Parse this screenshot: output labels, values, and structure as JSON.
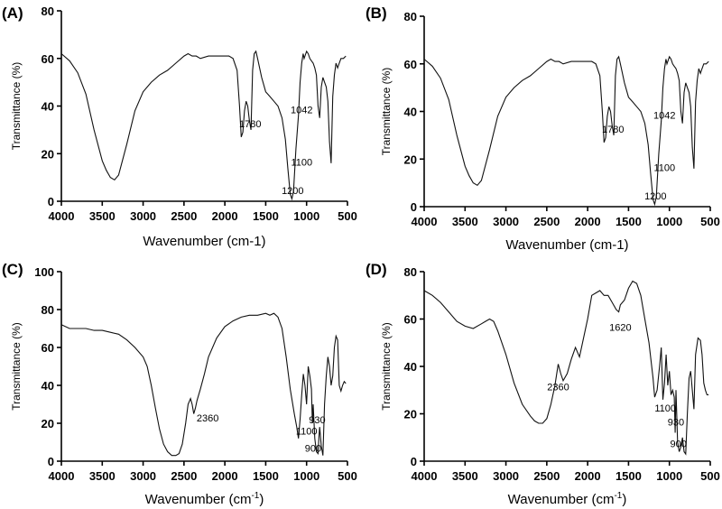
{
  "chart_data": [
    {
      "type": "line",
      "panel": "(A)",
      "xlabel": "Wavenumber (cm-1)",
      "ylabel": "Transmittance (%)",
      "xlim": [
        4000,
        500
      ],
      "ylim": [
        0,
        80
      ],
      "x_ticks": [
        "4000",
        "3500",
        "3000",
        "2500",
        "2000",
        "1500",
        "1000",
        "500"
      ],
      "y_ticks": [
        "0",
        "20",
        "40",
        "60",
        "80"
      ],
      "annotations": [
        {
          "text": "1780",
          "x": 1690,
          "y": 31
        },
        {
          "text": "1042",
          "x": 1060,
          "y": 37
        },
        {
          "text": "1100",
          "x": 1060,
          "y": 15
        },
        {
          "text": "1200",
          "x": 1170,
          "y": 3
        }
      ],
      "series": [
        {
          "x": [
            4000,
            3900,
            3800,
            3700,
            3600,
            3500,
            3450,
            3400,
            3350,
            3300,
            3200,
            3100,
            3000,
            2900,
            2800,
            2700,
            2600,
            2500,
            2450,
            2400,
            2350,
            2300,
            2200,
            2100,
            2000,
            1950,
            1900,
            1850,
            1820,
            1800,
            1780,
            1760,
            1740,
            1720,
            1700,
            1680,
            1660,
            1640,
            1620,
            1600,
            1550,
            1500,
            1450,
            1400,
            1350,
            1300,
            1260,
            1230,
            1200,
            1180,
            1160,
            1130,
            1100,
            1080,
            1060,
            1042,
            1030,
            1000,
            980,
            960,
            940,
            920,
            900,
            880,
            860,
            840,
            820,
            800,
            780,
            760,
            740,
            720,
            700,
            680,
            660,
            640,
            620,
            600,
            580,
            550,
            520
          ],
          "y": [
            62,
            59,
            54,
            45,
            30,
            17,
            13,
            10,
            9,
            11,
            24,
            38,
            46,
            50,
            53,
            55,
            58,
            61,
            62,
            61,
            61,
            60,
            61,
            61,
            61,
            61,
            60,
            55,
            40,
            27,
            29,
            38,
            42,
            40,
            34,
            30,
            55,
            62,
            63,
            60,
            52,
            46,
            44,
            42,
            40,
            35,
            26,
            14,
            3,
            1,
            4,
            22,
            36,
            50,
            58,
            62,
            60,
            63,
            62,
            60,
            59,
            58,
            56,
            53,
            40,
            35,
            48,
            52,
            50,
            48,
            42,
            25,
            16,
            44,
            53,
            58,
            56,
            58,
            60,
            60,
            61
          ]
        }
      ]
    },
    {
      "type": "line",
      "panel": "(B)",
      "xlabel": "Wavenumber (cm-1)",
      "ylabel": "Transmittance (%)",
      "xlim": [
        4000,
        500
      ],
      "ylim": [
        0,
        80
      ],
      "x_ticks": [
        "4000",
        "3500",
        "3000",
        "2500",
        "2000",
        "1500",
        "1000",
        "500"
      ],
      "y_ticks": [
        "0",
        "20",
        "40",
        "60",
        "80"
      ],
      "annotations": [
        {
          "text": "1780",
          "x": 1690,
          "y": 31
        },
        {
          "text": "1042",
          "x": 1060,
          "y": 37
        },
        {
          "text": "1100",
          "x": 1060,
          "y": 15
        },
        {
          "text": "1200",
          "x": 1170,
          "y": 3
        }
      ],
      "series": [
        {
          "x": [
            4000,
            3900,
            3800,
            3700,
            3600,
            3500,
            3450,
            3400,
            3350,
            3300,
            3200,
            3100,
            3000,
            2900,
            2800,
            2700,
            2600,
            2500,
            2450,
            2400,
            2350,
            2300,
            2200,
            2100,
            2000,
            1950,
            1900,
            1850,
            1820,
            1800,
            1780,
            1760,
            1740,
            1720,
            1700,
            1680,
            1660,
            1640,
            1620,
            1600,
            1550,
            1500,
            1450,
            1400,
            1350,
            1300,
            1260,
            1230,
            1200,
            1180,
            1160,
            1130,
            1100,
            1080,
            1060,
            1042,
            1030,
            1000,
            980,
            960,
            940,
            920,
            900,
            880,
            860,
            840,
            820,
            800,
            780,
            760,
            740,
            720,
            700,
            680,
            660,
            640,
            620,
            600,
            580,
            550,
            520
          ],
          "y": [
            62,
            59,
            54,
            45,
            30,
            17,
            13,
            10,
            9,
            11,
            24,
            38,
            46,
            50,
            53,
            55,
            58,
            61,
            62,
            61,
            61,
            60,
            61,
            61,
            61,
            61,
            60,
            55,
            40,
            27,
            29,
            38,
            42,
            40,
            34,
            30,
            55,
            62,
            63,
            60,
            52,
            46,
            44,
            42,
            40,
            35,
            26,
            14,
            3,
            1,
            4,
            22,
            36,
            50,
            58,
            62,
            60,
            63,
            62,
            60,
            59,
            58,
            56,
            53,
            40,
            35,
            48,
            52,
            50,
            48,
            42,
            25,
            16,
            44,
            53,
            58,
            56,
            58,
            60,
            60,
            61
          ]
        }
      ]
    },
    {
      "type": "line",
      "panel": "(C)",
      "xlabel": "Wavenumber (cm",
      "xlabel_sup": "-1",
      "xlabel_end": ")",
      "ylabel": "Transmittance (%)",
      "xlim": [
        4000,
        500
      ],
      "ylim": [
        0,
        100
      ],
      "x_ticks": [
        "4000",
        "3500",
        "3000",
        "2500",
        "2000",
        "1500",
        "1000",
        "500"
      ],
      "y_ticks": [
        "0",
        "20",
        "40",
        "60",
        "80",
        "100"
      ],
      "annotations": [
        {
          "text": "2360",
          "x": 2210,
          "y": 21
        },
        {
          "text": "930",
          "x": 870,
          "y": 20
        },
        {
          "text": "1100",
          "x": 1000,
          "y": 14
        },
        {
          "text": "900",
          "x": 920,
          "y": 5
        }
      ],
      "series": [
        {
          "x": [
            4000,
            3900,
            3800,
            3700,
            3600,
            3500,
            3400,
            3300,
            3200,
            3100,
            3000,
            2950,
            2900,
            2850,
            2800,
            2750,
            2700,
            2650,
            2600,
            2560,
            2520,
            2480,
            2450,
            2420,
            2400,
            2380,
            2360,
            2340,
            2300,
            2250,
            2200,
            2100,
            2000,
            1900,
            1800,
            1700,
            1600,
            1500,
            1450,
            1400,
            1350,
            1300,
            1250,
            1200,
            1150,
            1120,
            1100,
            1080,
            1060,
            1040,
            1020,
            1000,
            980,
            960,
            940,
            930,
            920,
            900,
            880,
            860,
            850,
            840,
            820,
            800,
            780,
            760,
            740,
            720,
            700,
            680,
            660,
            640,
            620,
            600,
            580,
            560,
            540,
            520
          ],
          "y": [
            72,
            70,
            70,
            70,
            69,
            69,
            68,
            67,
            64,
            60,
            55,
            50,
            40,
            28,
            17,
            9,
            5,
            3,
            3,
            4,
            9,
            20,
            30,
            33,
            30,
            25,
            28,
            32,
            38,
            46,
            55,
            65,
            71,
            74,
            76,
            77,
            77,
            78,
            77,
            78,
            76,
            70,
            55,
            38,
            25,
            18,
            12,
            22,
            35,
            46,
            40,
            30,
            50,
            45,
            38,
            20,
            30,
            12,
            5,
            4,
            12,
            18,
            8,
            3,
            30,
            45,
            55,
            50,
            40,
            45,
            60,
            66,
            64,
            40,
            37,
            40,
            42,
            41
          ]
        }
      ]
    },
    {
      "type": "line",
      "panel": "(D)",
      "xlabel": "Wavenumber (cm",
      "xlabel_sup": "-1",
      "xlabel_end": ")",
      "ylabel": "Transmittance (%)",
      "xlim": [
        4000,
        500
      ],
      "ylim": [
        0,
        80
      ],
      "x_ticks": [
        "4000",
        "3500",
        "3000",
        "2500",
        "2000",
        "1500",
        "1000",
        "500"
      ],
      "y_ticks": [
        "0",
        "20",
        "40",
        "60",
        "80"
      ],
      "annotations": [
        {
          "text": "1620",
          "x": 1600,
          "y": 55
        },
        {
          "text": "2360",
          "x": 2360,
          "y": 30
        },
        {
          "text": "1100",
          "x": 1050,
          "y": 21
        },
        {
          "text": "930",
          "x": 920,
          "y": 15
        },
        {
          "text": "900",
          "x": 890,
          "y": 6
        }
      ],
      "series": [
        {
          "x": [
            4000,
            3900,
            3800,
            3700,
            3600,
            3500,
            3400,
            3300,
            3250,
            3200,
            3150,
            3100,
            3000,
            2900,
            2800,
            2700,
            2650,
            2600,
            2550,
            2500,
            2450,
            2400,
            2360,
            2330,
            2300,
            2250,
            2200,
            2150,
            2100,
            2050,
            2000,
            1950,
            1900,
            1850,
            1800,
            1750,
            1700,
            1650,
            1620,
            1600,
            1550,
            1500,
            1450,
            1400,
            1350,
            1300,
            1250,
            1200,
            1180,
            1150,
            1120,
            1100,
            1080,
            1060,
            1040,
            1020,
            1000,
            980,
            960,
            940,
            930,
            920,
            900,
            880,
            860,
            840,
            820,
            800,
            780,
            760,
            740,
            720,
            700,
            680,
            650,
            620,
            600,
            580,
            560,
            540,
            520
          ],
          "y": [
            72,
            70,
            67,
            63,
            59,
            57,
            56,
            58,
            59,
            60,
            59,
            55,
            45,
            33,
            24,
            19,
            17,
            16,
            16,
            18,
            24,
            32,
            41,
            37,
            34,
            37,
            43,
            48,
            44,
            52,
            60,
            70,
            71,
            72,
            70,
            70,
            67,
            64,
            63,
            66,
            68,
            73,
            76,
            75,
            70,
            60,
            50,
            35,
            27,
            30,
            40,
            48,
            26,
            33,
            45,
            32,
            38,
            28,
            30,
            27,
            12,
            30,
            8,
            4,
            6,
            10,
            4,
            3,
            20,
            35,
            38,
            30,
            22,
            45,
            52,
            51,
            45,
            33,
            30,
            28,
            28
          ]
        }
      ]
    }
  ]
}
